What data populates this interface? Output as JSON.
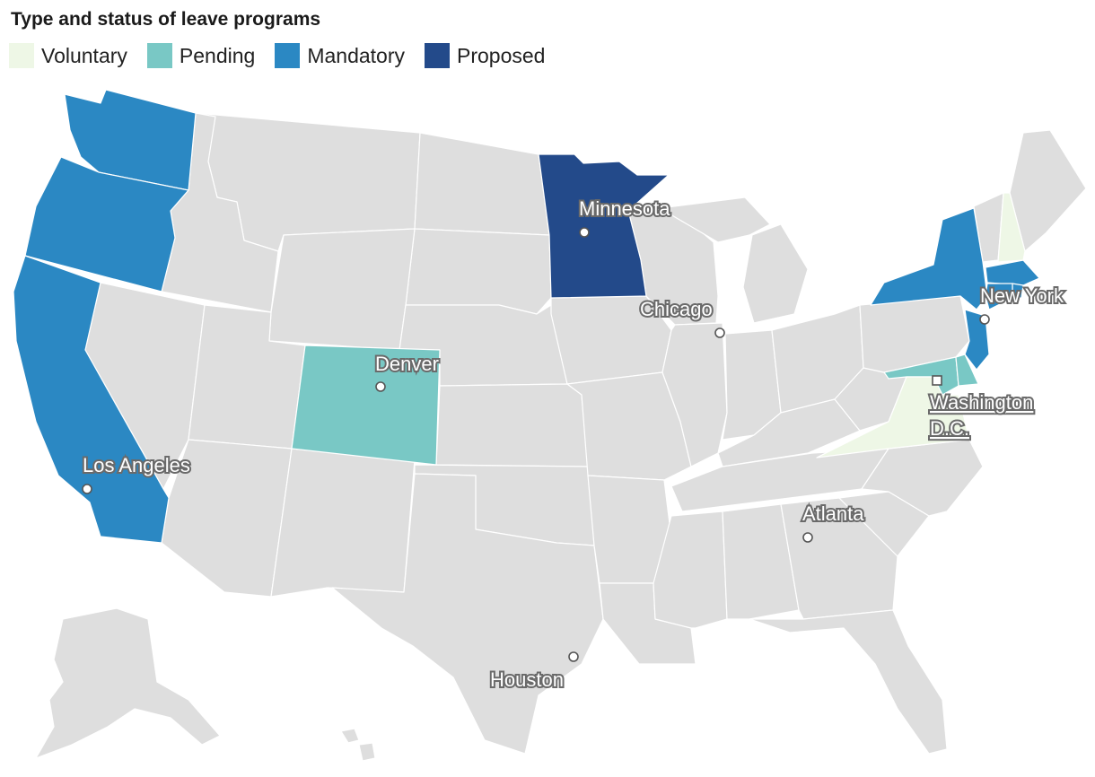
{
  "title": "Type and status of leave programs",
  "legend": [
    {
      "label": "Voluntary",
      "color": "#eef7e6"
    },
    {
      "label": "Pending",
      "color": "#79c8c5"
    },
    {
      "label": "Mandatory",
      "color": "#2b88c3"
    },
    {
      "label": "Proposed",
      "color": "#234a8a"
    }
  ],
  "colors": {
    "default": "#dedede",
    "voluntary": "#eef7e6",
    "pending": "#79c8c5",
    "mandatory": "#2b88c3",
    "proposed": "#234a8a"
  },
  "cities": {
    "minnesota": "Minnesota",
    "chicago": "Chicago",
    "new_york": "New York",
    "denver": "Denver",
    "washington_line1": "Washington",
    "washington_line2": "D.C.",
    "los_angeles": "Los Angeles",
    "atlanta": "Atlanta",
    "houston": "Houston"
  }
}
